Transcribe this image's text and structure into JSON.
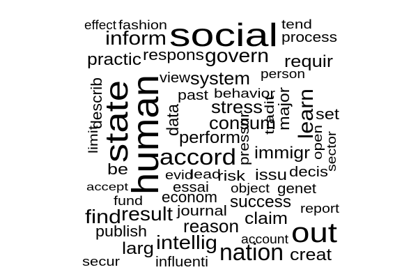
{
  "word_cloud": {
    "text_color": "#000000",
    "background_color": "#ffffff",
    "words": [
      {
        "text": "effect",
        "rotated": false
      },
      {
        "text": "fashion",
        "rotated": false
      },
      {
        "text": "social",
        "rotated": false
      },
      {
        "text": "tend",
        "rotated": false
      },
      {
        "text": "inform",
        "rotated": false
      },
      {
        "text": "process",
        "rotated": false
      },
      {
        "text": "practic",
        "rotated": false
      },
      {
        "text": "respons",
        "rotated": false
      },
      {
        "text": "govern",
        "rotated": false
      },
      {
        "text": "requir",
        "rotated": false
      },
      {
        "text": "view",
        "rotated": false
      },
      {
        "text": "system",
        "rotated": false
      },
      {
        "text": "person",
        "rotated": false
      },
      {
        "text": "past",
        "rotated": false
      },
      {
        "text": "behavior",
        "rotated": false
      },
      {
        "text": "stress",
        "rotated": false
      },
      {
        "text": "consum",
        "rotated": false
      },
      {
        "text": "perform",
        "rotated": false
      },
      {
        "text": "accord",
        "rotated": false
      },
      {
        "text": "immigr",
        "rotated": false
      },
      {
        "text": "set",
        "rotated": false
      },
      {
        "text": "be",
        "rotated": false
      },
      {
        "text": "evid",
        "rotated": false
      },
      {
        "text": "lead",
        "rotated": false
      },
      {
        "text": "risk",
        "rotated": false
      },
      {
        "text": "issu",
        "rotated": false
      },
      {
        "text": "decis",
        "rotated": false
      },
      {
        "text": "accept",
        "rotated": false
      },
      {
        "text": "essai",
        "rotated": false
      },
      {
        "text": "object",
        "rotated": false
      },
      {
        "text": "genet",
        "rotated": false
      },
      {
        "text": "fund",
        "rotated": false
      },
      {
        "text": "econom",
        "rotated": false
      },
      {
        "text": "success",
        "rotated": false
      },
      {
        "text": "report",
        "rotated": false
      },
      {
        "text": "find",
        "rotated": false
      },
      {
        "text": "result",
        "rotated": false
      },
      {
        "text": "journal",
        "rotated": false
      },
      {
        "text": "claim",
        "rotated": false
      },
      {
        "text": "publish",
        "rotated": false
      },
      {
        "text": "reason",
        "rotated": false
      },
      {
        "text": "out",
        "rotated": false
      },
      {
        "text": "intellig",
        "rotated": false
      },
      {
        "text": "account",
        "rotated": false
      },
      {
        "text": "larg",
        "rotated": false
      },
      {
        "text": "nation",
        "rotated": false
      },
      {
        "text": "creat",
        "rotated": false
      },
      {
        "text": "secur",
        "rotated": false
      },
      {
        "text": "influenti",
        "rotated": false
      },
      {
        "text": "limit",
        "rotated": true
      },
      {
        "text": "describ",
        "rotated": true
      },
      {
        "text": "state",
        "rotated": true
      },
      {
        "text": "human",
        "rotated": true
      },
      {
        "text": "data",
        "rotated": true
      },
      {
        "text": "pressur",
        "rotated": true
      },
      {
        "text": "tradit",
        "rotated": true
      },
      {
        "text": "major",
        "rotated": true
      },
      {
        "text": "learn",
        "rotated": true
      },
      {
        "text": "open",
        "rotated": true
      },
      {
        "text": "sector",
        "rotated": true
      }
    ]
  }
}
